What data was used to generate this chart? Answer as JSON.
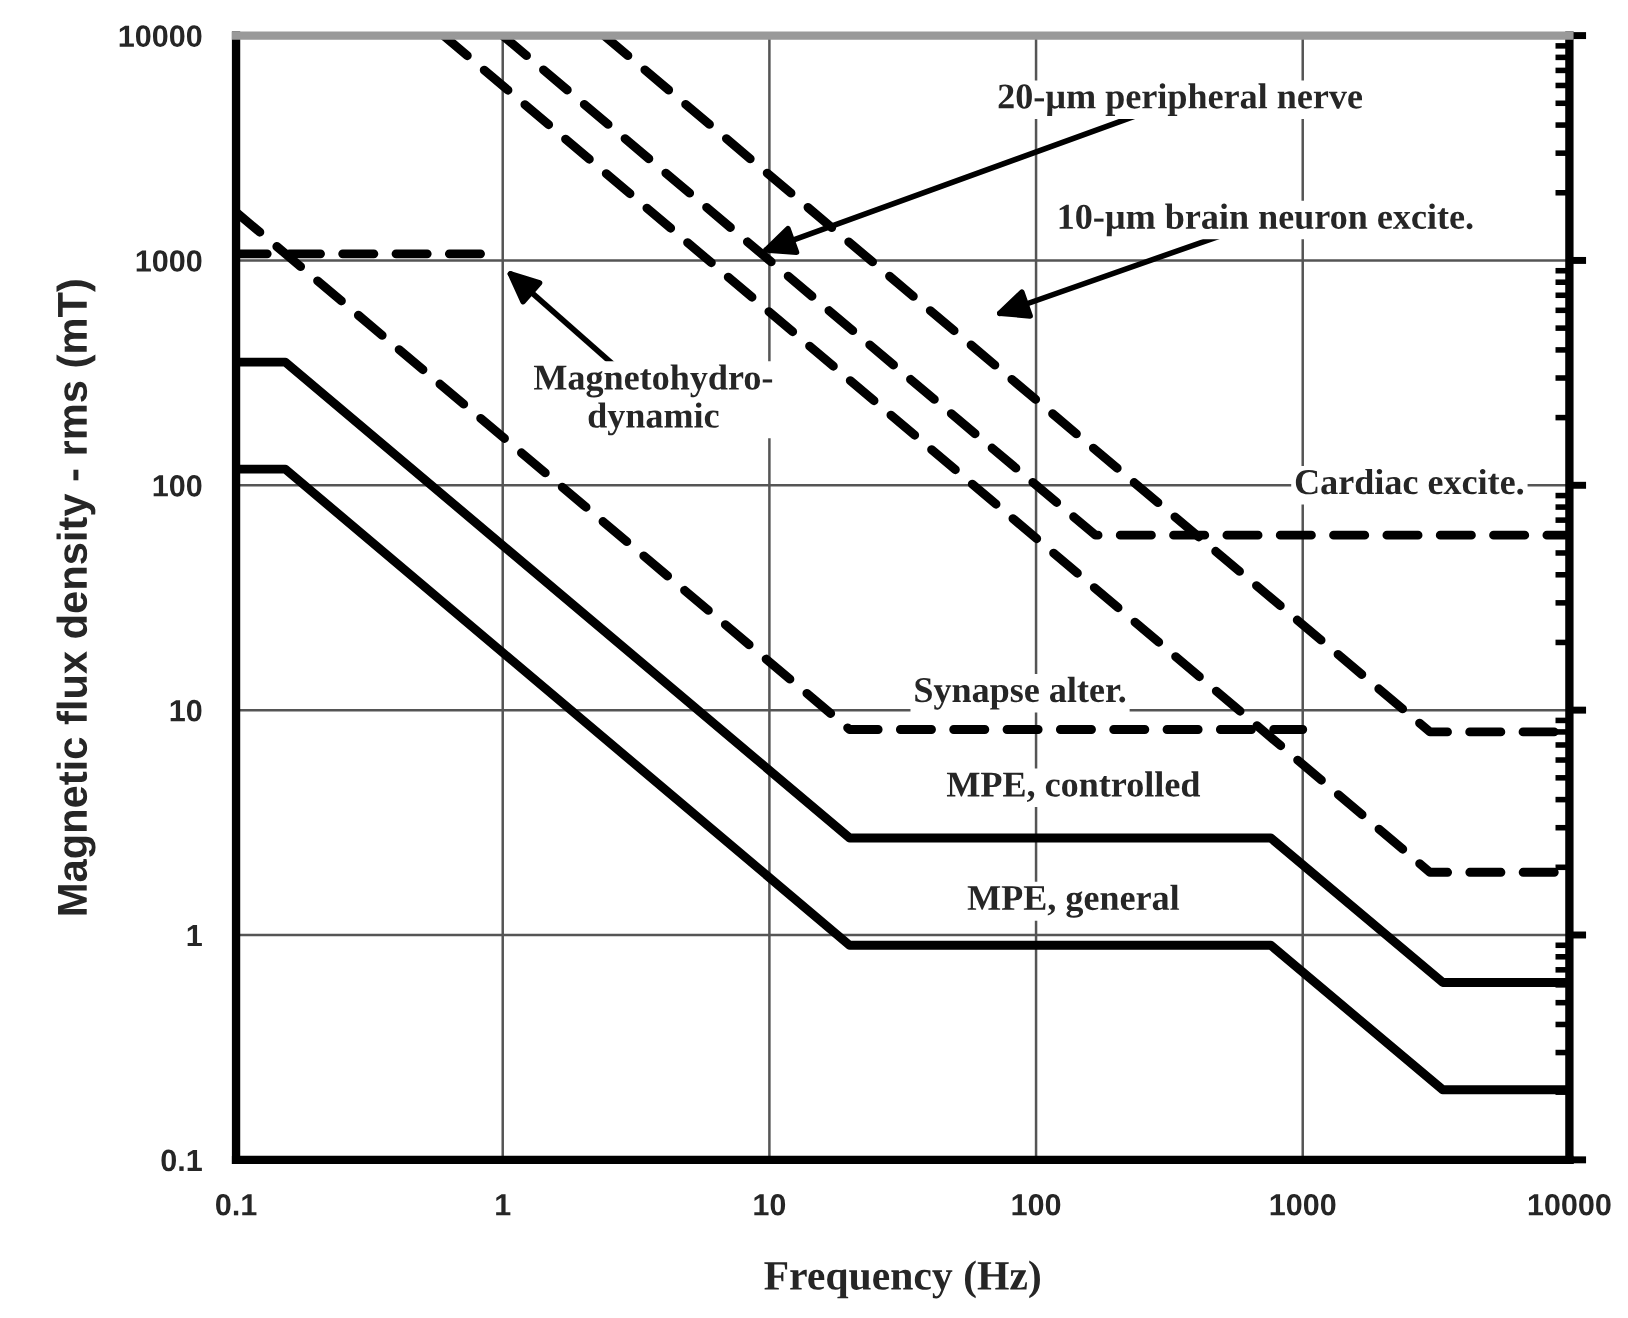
{
  "chart_data": {
    "type": "line",
    "xlabel": "Frequency (Hz)",
    "ylabel": "Magnetic flux density - rms (mT)",
    "log": "xy",
    "grid": true,
    "legend": false,
    "marker": "none",
    "xlim": [
      0.1,
      10000
    ],
    "ylim": [
      0.1,
      10000
    ],
    "xticks": [
      0.1,
      1,
      10,
      100,
      1000,
      10000
    ],
    "yticks": [
      0.1,
      1,
      10,
      100,
      1000,
      10000
    ],
    "series": [
      {
        "color": "#000000",
        "line_style": "solid",
        "x": [
          0.1,
          0.153,
          20,
          759,
          3350,
          10000
        ],
        "values": [
          353,
          353,
          2.7,
          2.7,
          0.615,
          0.615
        ]
      },
      {
        "color": "#000000",
        "line_style": "solid",
        "x": [
          0.1,
          0.153,
          20,
          759,
          3350,
          10000
        ],
        "values": [
          118,
          118,
          0.9,
          0.9,
          0.205,
          0.205
        ]
      },
      {
        "color": "#000000",
        "line_style": "dashed",
        "x": [
          0.1,
          1
        ],
        "values": [
          1070,
          1070
        ]
      },
      {
        "color": "#000000",
        "line_style": "dashed",
        "x": [
          0.1,
          20,
          1000
        ],
        "values": [
          1640,
          8.2,
          8.2
        ]
      },
      {
        "color": "#000000",
        "line_style": "dashed",
        "x": [
          1,
          167,
          10000
        ],
        "values": [
          10000,
          60,
          60
        ]
      },
      {
        "color": "#000000",
        "line_style": "dashed",
        "x": [
          0.6,
          3000,
          10000
        ],
        "values": [
          10000,
          1.9,
          1.9
        ]
      },
      {
        "color": "#000000",
        "line_style": "dashed",
        "x": [
          2.4,
          3000,
          10000
        ],
        "values": [
          10000,
          8,
          8
        ]
      }
    ],
    "annotations": [
      {
        "text": "20-µm peripheral nerve",
        "x": 9.2,
        "y": 1087
      },
      "10-µm brain neuron excite.",
      "Magnetohydro-\ndynamic",
      "Cardiac excite.",
      "Synapse alter.",
      "MPE, controlled",
      "MPE, general"
    ]
  }
}
